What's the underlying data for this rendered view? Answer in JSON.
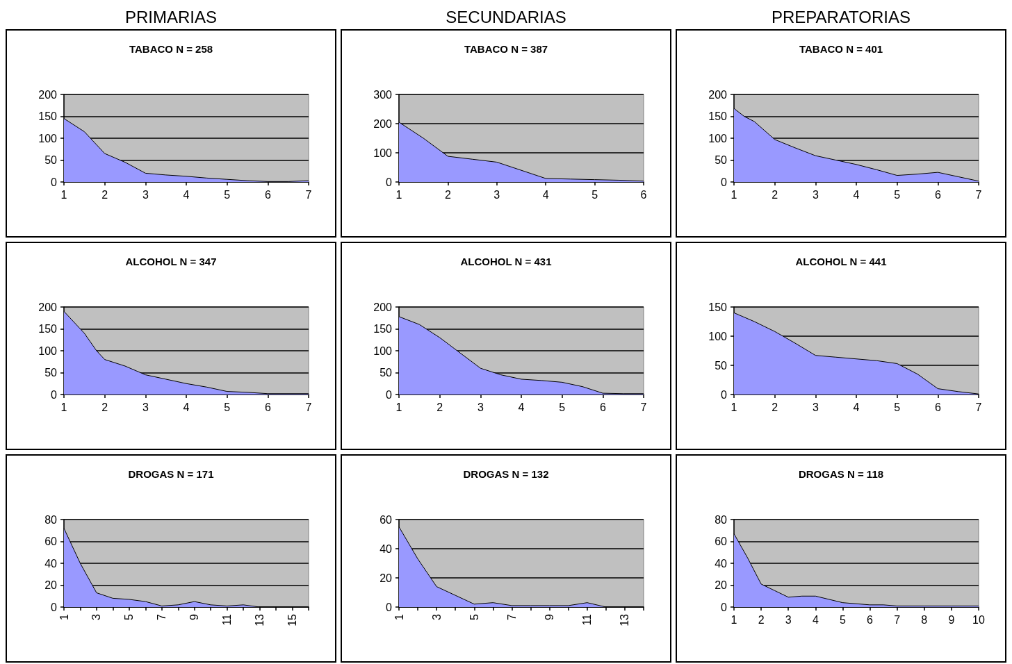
{
  "chart_data": [
    {
      "type": "area",
      "subtitle": "PRIMARIAS",
      "title": "TABACO N = 258",
      "color": "#9999ff",
      "grid": "y",
      "xlim": [
        1,
        7
      ],
      "xticks": [
        1,
        2,
        3,
        4,
        5,
        6,
        7
      ],
      "ylim": [
        0,
        200
      ],
      "yticks": [
        0,
        50,
        100,
        150,
        200
      ],
      "x": [
        1,
        1.5,
        2,
        2.5,
        3,
        3.5,
        4,
        4.5,
        5,
        5.5,
        6,
        6.5,
        7
      ],
      "values": [
        145,
        115,
        65,
        45,
        20,
        16,
        13,
        9,
        6,
        3,
        1,
        1,
        3
      ]
    },
    {
      "type": "area",
      "subtitle": "SECUNDARIAS",
      "title": "TABACO N = 387",
      "color": "#9999ff",
      "grid": "y",
      "xlim": [
        1,
        6
      ],
      "xticks": [
        1,
        2,
        3,
        4,
        5,
        6
      ],
      "ylim": [
        0,
        300
      ],
      "yticks": [
        0,
        100,
        200,
        300
      ],
      "x": [
        1,
        1.5,
        2,
        2.5,
        3,
        3.5,
        4,
        4.5,
        5,
        5.5,
        6
      ],
      "values": [
        205,
        150,
        88,
        78,
        68,
        40,
        12,
        10,
        8,
        6,
        3
      ]
    },
    {
      "type": "area",
      "subtitle": "PREPARATORIAS",
      "title": "TABACO N = 401",
      "color": "#9999ff",
      "grid": "y",
      "xlim": [
        1,
        7
      ],
      "xticks": [
        1,
        2,
        3,
        4,
        5,
        6,
        7
      ],
      "ylim": [
        0,
        200
      ],
      "yticks": [
        0,
        50,
        100,
        150,
        200
      ],
      "x": [
        1,
        1.25,
        1.5,
        2,
        2.5,
        3,
        3.5,
        4,
        4.5,
        5,
        5.5,
        6,
        6.5,
        7
      ],
      "values": [
        168,
        150,
        138,
        97,
        78,
        60,
        50,
        40,
        28,
        15,
        18,
        22,
        12,
        2
      ]
    },
    {
      "type": "area",
      "title": "ALCOHOL N = 347",
      "color": "#9999ff",
      "grid": "y",
      "xlim": [
        1,
        7
      ],
      "xticks": [
        1,
        2,
        3,
        4,
        5,
        6,
        7
      ],
      "ylim": [
        0,
        200
      ],
      "yticks": [
        0,
        50,
        100,
        150,
        200
      ],
      "x": [
        1,
        1.5,
        1.8,
        2,
        2.5,
        3,
        3.5,
        4,
        4.5,
        5,
        5.5,
        6,
        7
      ],
      "values": [
        190,
        140,
        100,
        80,
        65,
        45,
        35,
        25,
        17,
        7,
        5,
        2,
        2
      ]
    },
    {
      "type": "area",
      "title": "ALCOHOL N = 431",
      "color": "#9999ff",
      "grid": "y",
      "xlim": [
        1,
        7
      ],
      "xticks": [
        1,
        2,
        3,
        4,
        5,
        6,
        7
      ],
      "ylim": [
        0,
        200
      ],
      "yticks": [
        0,
        50,
        100,
        150,
        200
      ],
      "x": [
        1,
        1.5,
        2,
        2.5,
        3,
        3.5,
        4,
        4.5,
        5,
        5.5,
        6,
        6.5,
        7
      ],
      "values": [
        178,
        160,
        130,
        95,
        60,
        45,
        35,
        32,
        28,
        18,
        3,
        2,
        2
      ]
    },
    {
      "type": "area",
      "title": "ALCOHOL N = 441",
      "color": "#9999ff",
      "grid": "y",
      "xlim": [
        1,
        7
      ],
      "xticks": [
        1,
        2,
        3,
        4,
        5,
        6,
        7
      ],
      "ylim": [
        0,
        150
      ],
      "yticks": [
        0,
        50,
        100,
        150
      ],
      "x": [
        1,
        1.5,
        2,
        2.5,
        3,
        3.5,
        4,
        4.5,
        5,
        5.5,
        6,
        6.5,
        7
      ],
      "values": [
        140,
        125,
        108,
        88,
        67,
        64,
        61,
        58,
        53,
        35,
        10,
        5,
        1
      ]
    },
    {
      "type": "area",
      "title": "DROGAS N = 171",
      "color": "#9999ff",
      "grid": "y",
      "xlim": [
        1,
        16
      ],
      "xticks": [
        1,
        {
          "value": 2,
          "label": null
        },
        3,
        {
          "value": 4,
          "label": null
        },
        5,
        {
          "value": 6,
          "label": null
        },
        7,
        {
          "value": 8,
          "label": null
        },
        9,
        {
          "value": 10,
          "label": null
        },
        11,
        {
          "value": 12,
          "label": null
        },
        13,
        {
          "value": 14,
          "label": null
        },
        15,
        {
          "value": 16,
          "label": null
        }
      ],
      "ylim": [
        0,
        80
      ],
      "yticks": [
        0,
        20,
        40,
        60,
        80
      ],
      "x": [
        1,
        2,
        3,
        4,
        5,
        6,
        7,
        8,
        9,
        10,
        11,
        12,
        13,
        14,
        15,
        16
      ],
      "values": [
        72,
        40,
        13,
        8,
        7,
        5,
        1,
        2,
        5,
        2,
        1,
        2,
        0,
        0,
        0,
        0
      ]
    },
    {
      "type": "area",
      "title": "DROGAS N = 132",
      "color": "#9999ff",
      "grid": "y",
      "xlim": [
        1,
        14
      ],
      "xticks": [
        1,
        {
          "value": 2,
          "label": null
        },
        3,
        {
          "value": 4,
          "label": null
        },
        5,
        {
          "value": 6,
          "label": null
        },
        7,
        {
          "value": 8,
          "label": null
        },
        9,
        {
          "value": 10,
          "label": null
        },
        11,
        {
          "value": 12,
          "label": null
        },
        13,
        {
          "value": 14,
          "label": null
        }
      ],
      "ylim": [
        0,
        60
      ],
      "yticks": [
        0,
        20,
        40,
        60
      ],
      "x": [
        1,
        2,
        3,
        4,
        5,
        6,
        7,
        8,
        9,
        10,
        11,
        12,
        13,
        14
      ],
      "values": [
        55,
        33,
        14,
        8,
        2,
        3,
        1,
        1,
        1,
        1,
        3,
        0,
        0,
        0
      ]
    },
    {
      "type": "area",
      "title": "DROGAS N = 118",
      "color": "#9999ff",
      "grid": "y",
      "xlim": [
        1,
        10
      ],
      "xticks": [
        1,
        2,
        3,
        4,
        5,
        6,
        7,
        8,
        9,
        10
      ],
      "ylim": [
        0,
        80
      ],
      "yticks": [
        0,
        20,
        40,
        60,
        80
      ],
      "x": [
        1,
        1.5,
        2,
        2.5,
        3,
        3.5,
        4,
        4.5,
        5,
        5.5,
        6,
        6.5,
        7,
        8,
        9,
        10
      ],
      "values": [
        67,
        45,
        21,
        15,
        9,
        10,
        10,
        7,
        4,
        3,
        2,
        2,
        1,
        1,
        1,
        1
      ]
    }
  ]
}
